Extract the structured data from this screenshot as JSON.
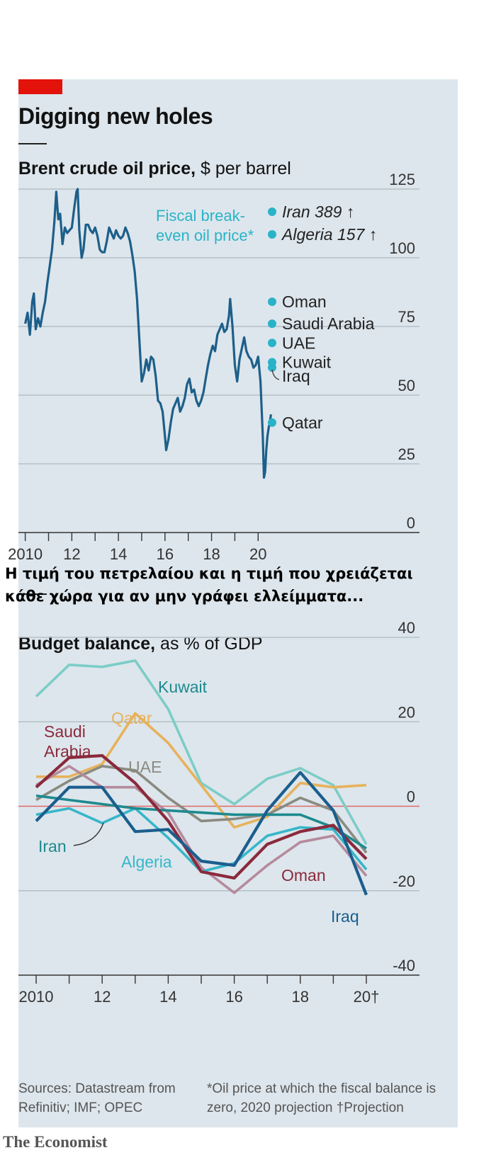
{
  "headline": "Digging new holes",
  "overlay_text": "Η τιμή του πετρελαίου και η τιμή που χρειάζεται κάθε χώρα για αν μην γράφει ελλείμματα...",
  "sources": "Sources: Datastream from Refinitiv; IMF; OPEC",
  "footnote": "*Oil price at which the fiscal balance is zero, 2020 projection  †Projection",
  "brand": "The Economist",
  "colors": {
    "brent": "#1d5f8a",
    "accent_red": "#e3120b",
    "dot": "#2ab3c8",
    "zero_line": "#e06a6a",
    "Kuwait": "#7ccdc7",
    "Qatar": "#e7b25c",
    "Saudi Arabia": "#8a2a3c",
    "UAE": "#8a8a80",
    "Iran": "#1d8a8e",
    "Algeria": "#37b6c9",
    "Oman": "#b58a9c",
    "Iraq": "#1b5e8e"
  },
  "chart_data": [
    {
      "type": "line",
      "title": "Brent crude oil price,",
      "unit": "$ per barrel",
      "x_tick_labels": [
        "2010",
        "12",
        "14",
        "16",
        "18",
        "20"
      ],
      "x_ticks": [
        2010,
        2012,
        2014,
        2016,
        2018,
        2020
      ],
      "y_ticks": [
        0,
        25,
        50,
        75,
        100,
        125
      ],
      "ylim": [
        0,
        125
      ],
      "xlim": [
        2009.95,
        2020.6
      ],
      "series": [
        {
          "name": "Brent",
          "x": [
            2010.0,
            2010.1,
            2010.2,
            2010.3,
            2010.37,
            2010.45,
            2010.55,
            2010.65,
            2010.75,
            2010.85,
            2010.95,
            2011.05,
            2011.15,
            2011.25,
            2011.33,
            2011.42,
            2011.5,
            2011.6,
            2011.7,
            2011.8,
            2011.9,
            2012.0,
            2012.1,
            2012.2,
            2012.25,
            2012.32,
            2012.42,
            2012.5,
            2012.6,
            2012.7,
            2012.8,
            2012.9,
            2013.0,
            2013.1,
            2013.2,
            2013.3,
            2013.4,
            2013.5,
            2013.6,
            2013.7,
            2013.8,
            2013.9,
            2014.0,
            2014.1,
            2014.2,
            2014.3,
            2014.4,
            2014.5,
            2014.6,
            2014.7,
            2014.8,
            2014.9,
            2015.0,
            2015.1,
            2015.2,
            2015.3,
            2015.4,
            2015.5,
            2015.6,
            2015.7,
            2015.8,
            2015.9,
            2016.0,
            2016.05,
            2016.15,
            2016.25,
            2016.35,
            2016.45,
            2016.55,
            2016.65,
            2016.75,
            2016.85,
            2016.95,
            2017.05,
            2017.15,
            2017.25,
            2017.35,
            2017.45,
            2017.55,
            2017.65,
            2017.75,
            2017.85,
            2017.95,
            2018.05,
            2018.15,
            2018.25,
            2018.35,
            2018.45,
            2018.55,
            2018.65,
            2018.75,
            2018.8,
            2018.9,
            2019.0,
            2019.1,
            2019.2,
            2019.3,
            2019.4,
            2019.5,
            2019.6,
            2019.7,
            2019.8,
            2019.9,
            2020.0,
            2020.1,
            2020.2,
            2020.25,
            2020.3,
            2020.35,
            2020.4,
            2020.45,
            2020.5,
            2020.55
          ],
          "y": [
            76,
            80,
            72,
            84,
            87,
            74,
            78,
            75,
            80,
            84,
            91,
            97,
            103,
            113,
            124,
            114,
            116,
            105,
            111,
            109,
            110,
            111,
            118,
            124,
            125,
            110,
            100,
            103,
            112,
            112,
            110,
            109,
            111,
            108,
            103,
            102,
            102,
            106,
            111,
            109,
            107,
            110,
            108,
            107,
            108,
            111,
            109,
            106,
            101,
            95,
            85,
            70,
            55,
            58,
            63,
            59,
            64,
            63,
            57,
            48,
            47,
            44,
            35,
            30,
            34,
            40,
            45,
            47,
            49,
            44,
            46,
            49,
            54,
            56,
            51,
            52,
            48,
            46,
            48,
            51,
            56,
            61,
            65,
            68,
            66,
            72,
            74,
            76,
            73,
            74,
            79,
            85,
            75,
            61,
            55,
            63,
            67,
            71,
            66,
            64,
            63,
            60,
            61,
            64,
            55,
            35,
            20,
            22,
            30,
            35,
            38,
            40,
            43
          ]
        }
      ],
      "annotation": "Fiscal break-even oil price*",
      "breakeven": [
        {
          "label": "Iran 389 ↑",
          "y": 115,
          "italic": true
        },
        {
          "label": "Algeria 157 ↑",
          "y": 107,
          "italic": true
        },
        {
          "label": "Oman",
          "y": 84,
          "italic": false
        },
        {
          "label": "Saudi Arabia",
          "y": 76,
          "italic": false
        },
        {
          "label": "UAE",
          "y": 69,
          "italic": false
        },
        {
          "label": "Kuwait",
          "y": 62,
          "italic": false
        },
        {
          "label": "Iraq",
          "y": 60,
          "italic": false
        },
        {
          "label": "Qatar",
          "y": 40,
          "italic": false
        }
      ]
    },
    {
      "type": "line",
      "title": "Budget balance,",
      "unit": "as % of GDP",
      "x_tick_labels": [
        "2010",
        "12",
        "14",
        "16",
        "18",
        "20†"
      ],
      "x_ticks": [
        2010,
        2012,
        2014,
        2016,
        2018,
        2020
      ],
      "y_ticks": [
        40,
        20,
        0,
        -20,
        -40
      ],
      "ylim": [
        -40,
        40
      ],
      "xlim": [
        2009.5,
        2020.5
      ],
      "x": [
        2010,
        2011,
        2012,
        2013,
        2014,
        2015,
        2016,
        2017,
        2018,
        2019,
        2020
      ],
      "series": [
        {
          "name": "Kuwait",
          "values": [
            26,
            33.5,
            33,
            34.5,
            23,
            5.5,
            0.5,
            6.5,
            9,
            5,
            -9
          ]
        },
        {
          "name": "Qatar",
          "values": [
            7,
            7,
            10,
            22,
            15,
            5,
            -5,
            -2.5,
            5.5,
            4.5,
            5
          ]
        },
        {
          "name": "Saudi Arabia",
          "values": [
            4.5,
            11.5,
            12,
            5.5,
            -3.5,
            -15.5,
            -17,
            -9,
            -6,
            -4.5,
            -12.5
          ]
        },
        {
          "name": "UAE",
          "values": [
            1.5,
            6,
            9.5,
            8.5,
            2,
            -3.5,
            -3,
            -2,
            2,
            -1,
            -11
          ]
        },
        {
          "name": "Iran",
          "values": [
            2.5,
            1.5,
            0.5,
            -0.5,
            -1,
            -1.5,
            -2,
            -2,
            -2,
            -5,
            -10
          ]
        },
        {
          "name": "Algeria",
          "values": [
            -2,
            -0.5,
            -4,
            -0.5,
            -7.5,
            -15.5,
            -13.5,
            -7,
            -5,
            -5.5,
            -15
          ]
        },
        {
          "name": "Oman",
          "values": [
            5,
            9.5,
            4.5,
            4.5,
            -1.5,
            -14.5,
            -20.5,
            -14,
            -8.5,
            -7,
            -16.5
          ]
        },
        {
          "name": "Iraq",
          "values": [
            -3.5,
            4.5,
            4.5,
            -6,
            -5.5,
            -13,
            -14,
            -1,
            8,
            -1,
            -21
          ]
        }
      ],
      "labels": [
        "Kuwait",
        "Qatar",
        "Saudi",
        "Arabia",
        "UAE",
        "Iran",
        "Algeria",
        "Oman",
        "Iraq"
      ]
    }
  ]
}
